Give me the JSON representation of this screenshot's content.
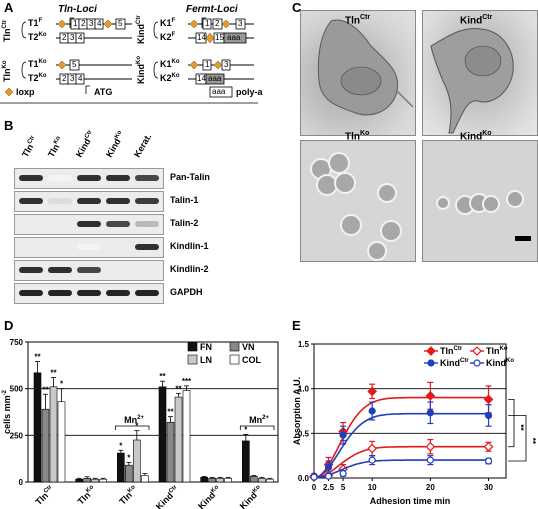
{
  "panels": {
    "A": "A",
    "B": "B",
    "C": "C",
    "D": "D",
    "E": "E"
  },
  "panelA": {
    "tln_loci_title": "Tln-Loci",
    "fermt_loci_title": "Fermt-Loci",
    "tln_ctr": "Tln",
    "tln_ctr_sup": "Ctr",
    "tln_ko": "Tln",
    "tln_ko_sup": "Ko",
    "kind_ctr": "Kind",
    "kind_ctr_sup": "Ctr",
    "kind_ko": "Kind",
    "kind_ko_sup": "Ko",
    "rows_left": [
      "T1",
      "T2",
      "T1",
      "T2"
    ],
    "rows_left_sup": [
      "F",
      "Ko",
      "Ko",
      "Ko"
    ],
    "rows_right": [
      "K1",
      "K2",
      "K1",
      "K2"
    ],
    "rows_right_sup": [
      "F",
      "F",
      "Ko",
      "Ko"
    ],
    "legend_loxp": "loxp",
    "legend_atg": "ATG",
    "legend_polya": "poly-a",
    "polya_text": "aaa",
    "exons": {
      "t1f": [
        "1",
        "2",
        "3",
        "4",
        "5"
      ],
      "t2ko": [
        "2",
        "3",
        "4"
      ],
      "t1ko": [
        "5"
      ],
      "k1f": [
        "1",
        "2",
        "3"
      ],
      "k2f": [
        "14",
        "15"
      ],
      "k1ko": [
        "1",
        "3"
      ],
      "k2ko": [
        "14"
      ]
    }
  },
  "panelB": {
    "lanes": [
      "Tln",
      "Tln",
      "Kind",
      "Kind",
      "Kerat."
    ],
    "lanes_sup": [
      "Ctr",
      "Ko",
      "Ctr",
      "Ko",
      ""
    ],
    "proteins": [
      "Pan-Talin",
      "Talin-1",
      "Talin-2",
      "Kindlin-1",
      "Kindlin-2",
      "GAPDH"
    ]
  },
  "panelC": {
    "titles": [
      "Tln",
      "Kind",
      "Tln",
      "Kind"
    ],
    "titles_sup": [
      "Ctr",
      "Ctr",
      "Ko",
      "Ko"
    ]
  },
  "chart_data": [
    {
      "panel": "D",
      "type": "bar",
      "ylabel": "cells mm",
      "ylabel_sup": "-2",
      "ylim": [
        0,
        750
      ],
      "yticks": [
        0,
        250,
        500,
        750
      ],
      "gridlines": [
        250,
        500
      ],
      "categories": [
        "Tln",
        "Tln",
        "Tln",
        "Kind",
        "Kind",
        "Kind"
      ],
      "categories_sup": [
        "Ctr",
        "Ko",
        "Ko",
        "Ctr",
        "Ko",
        "Ko"
      ],
      "mn_label": "Mn",
      "mn_sup": "2+",
      "legend": [
        "FN",
        "VN",
        "LN",
        "COL"
      ],
      "legend_colors": [
        "#111111",
        "#888888",
        "#c8c8c8",
        "#ffffff"
      ],
      "series": [
        {
          "name": "FN",
          "values": [
            585,
            15,
            155,
            510,
            25,
            220
          ],
          "err": [
            60,
            5,
            15,
            30,
            5,
            35
          ]
        },
        {
          "name": "LN",
          "values": [
            390,
            20,
            90,
            320,
            20,
            30
          ],
          "err": [
            80,
            8,
            15,
            30,
            5,
            5
          ]
        },
        {
          "name": "VN",
          "values": [
            510,
            15,
            225,
            455,
            20,
            20
          ],
          "err": [
            50,
            5,
            50,
            20,
            5,
            5
          ]
        },
        {
          "name": "COL",
          "values": [
            430,
            15,
            35,
            490,
            20,
            15
          ],
          "err": [
            70,
            5,
            10,
            25,
            5,
            5
          ]
        }
      ],
      "stars": [
        {
          "cat": 0,
          "bar": 0,
          "text": "**"
        },
        {
          "cat": 0,
          "bar": 1,
          "text": "**"
        },
        {
          "cat": 0,
          "bar": 2,
          "text": "**"
        },
        {
          "cat": 0,
          "bar": 3,
          "text": "*"
        },
        {
          "cat": 2,
          "bar": 0,
          "text": "*"
        },
        {
          "cat": 2,
          "bar": 1,
          "text": "*"
        },
        {
          "cat": 2,
          "bar": 2,
          "text": "*"
        },
        {
          "cat": 3,
          "bar": 0,
          "text": "**"
        },
        {
          "cat": 3,
          "bar": 1,
          "text": "**"
        },
        {
          "cat": 3,
          "bar": 2,
          "text": "**"
        },
        {
          "cat": 3,
          "bar": 3,
          "text": "***"
        },
        {
          "cat": 5,
          "bar": 0,
          "text": "*"
        }
      ]
    },
    {
      "panel": "E",
      "type": "line",
      "xlabel": "Adhesion time min",
      "ylabel": "Absorption A.U.",
      "xlim": [
        0,
        33
      ],
      "ylim": [
        0,
        1.5
      ],
      "xticks": [
        0,
        2.5,
        5,
        10,
        20,
        30
      ],
      "xtick_labels": [
        "0",
        "2.5",
        "5",
        "10",
        "20",
        "30"
      ],
      "yticks": [
        0.0,
        0.5,
        1.0,
        1.5
      ],
      "ytick_labels": [
        "0.0",
        "0.5",
        "1.0",
        "1.5"
      ],
      "gridlines": [
        0.5,
        1.0
      ],
      "sig_labels": [
        "**",
        "**"
      ],
      "series": [
        {
          "name": "Tln",
          "name_sup": "Ctr",
          "color": "#e31a1c",
          "filled": true,
          "x": [
            0,
            2.5,
            5,
            10,
            20,
            30
          ],
          "y": [
            0.02,
            0.15,
            0.52,
            0.97,
            0.92,
            0.88
          ],
          "err": [
            0.02,
            0.08,
            0.1,
            0.08,
            0.15,
            0.15
          ],
          "plateau": 0.9
        },
        {
          "name": "Tln",
          "name_sup": "Ko",
          "color": "#e31a1c",
          "filled": false,
          "x": [
            0,
            2.5,
            5,
            10,
            20,
            30
          ],
          "y": [
            0.01,
            0.03,
            0.1,
            0.33,
            0.35,
            0.35
          ],
          "err": [
            0.01,
            0.02,
            0.05,
            0.08,
            0.08,
            0.05
          ],
          "plateau": 0.35
        },
        {
          "name": "Kind",
          "name_sup": "Ctr",
          "color": "#1f3fbf",
          "filled": true,
          "x": [
            0,
            2.5,
            5,
            10,
            20,
            30
          ],
          "y": [
            0.02,
            0.12,
            0.48,
            0.75,
            0.73,
            0.7
          ],
          "err": [
            0.02,
            0.07,
            0.1,
            0.1,
            0.12,
            0.12
          ],
          "plateau": 0.72
        },
        {
          "name": "Kind",
          "name_sup": "Ko",
          "color": "#1f3fbf",
          "filled": false,
          "x": [
            0,
            2.5,
            5,
            10,
            20,
            30
          ],
          "y": [
            0.01,
            0.02,
            0.05,
            0.2,
            0.2,
            0.19
          ],
          "err": [
            0.01,
            0.02,
            0.03,
            0.05,
            0.05,
            0.03
          ],
          "plateau": 0.2
        }
      ]
    }
  ]
}
